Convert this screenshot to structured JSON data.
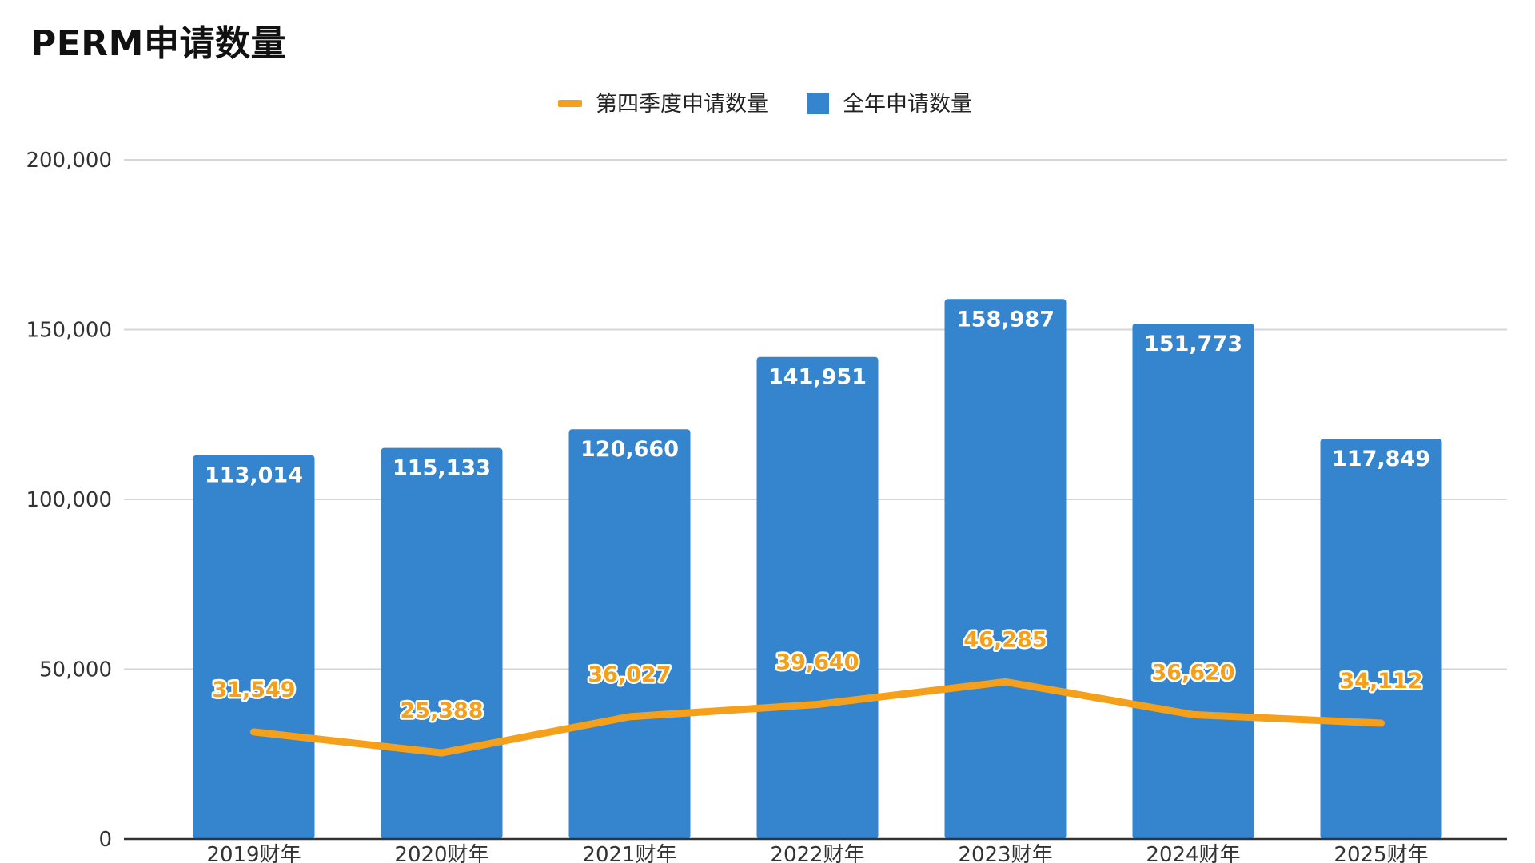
{
  "chart_data": {
    "type": "bar",
    "title": "PERM申请数量",
    "categories": [
      "2019财年",
      "2020财年",
      "2021财年",
      "2022财年",
      "2023财年",
      "2024财年",
      "2025财年"
    ],
    "ylim": [
      0,
      200000
    ],
    "y_ticks": [
      0,
      50000,
      100000,
      150000,
      200000
    ],
    "y_tick_labels": [
      "0",
      "50,000",
      "100,000",
      "150,000",
      "200,000"
    ],
    "grid": true,
    "legend_position": "top-center",
    "series": [
      {
        "name": "全年申请数量",
        "type": "bar",
        "color": "#3585CE",
        "values": [
          113014,
          115133,
          120660,
          141951,
          158987,
          151773,
          117849
        ],
        "labels": [
          "113,014",
          "115,133",
          "120,660",
          "141,951",
          "158,987",
          "151,773",
          "117,849"
        ]
      },
      {
        "name": "第四季度申请数量",
        "type": "line",
        "color": "#F5A01A",
        "values": [
          31549,
          25388,
          36027,
          39640,
          46285,
          36620,
          34112
        ],
        "labels": [
          "31,549",
          "25,388",
          "36,027",
          "39,640",
          "46,285",
          "36,620",
          "34,112"
        ]
      }
    ],
    "legend": [
      {
        "label": "第四季度申请数量",
        "marker": "line",
        "color": "#F5A01A"
      },
      {
        "label": "全年申请数量",
        "marker": "square",
        "color": "#3585CE"
      }
    ]
  }
}
